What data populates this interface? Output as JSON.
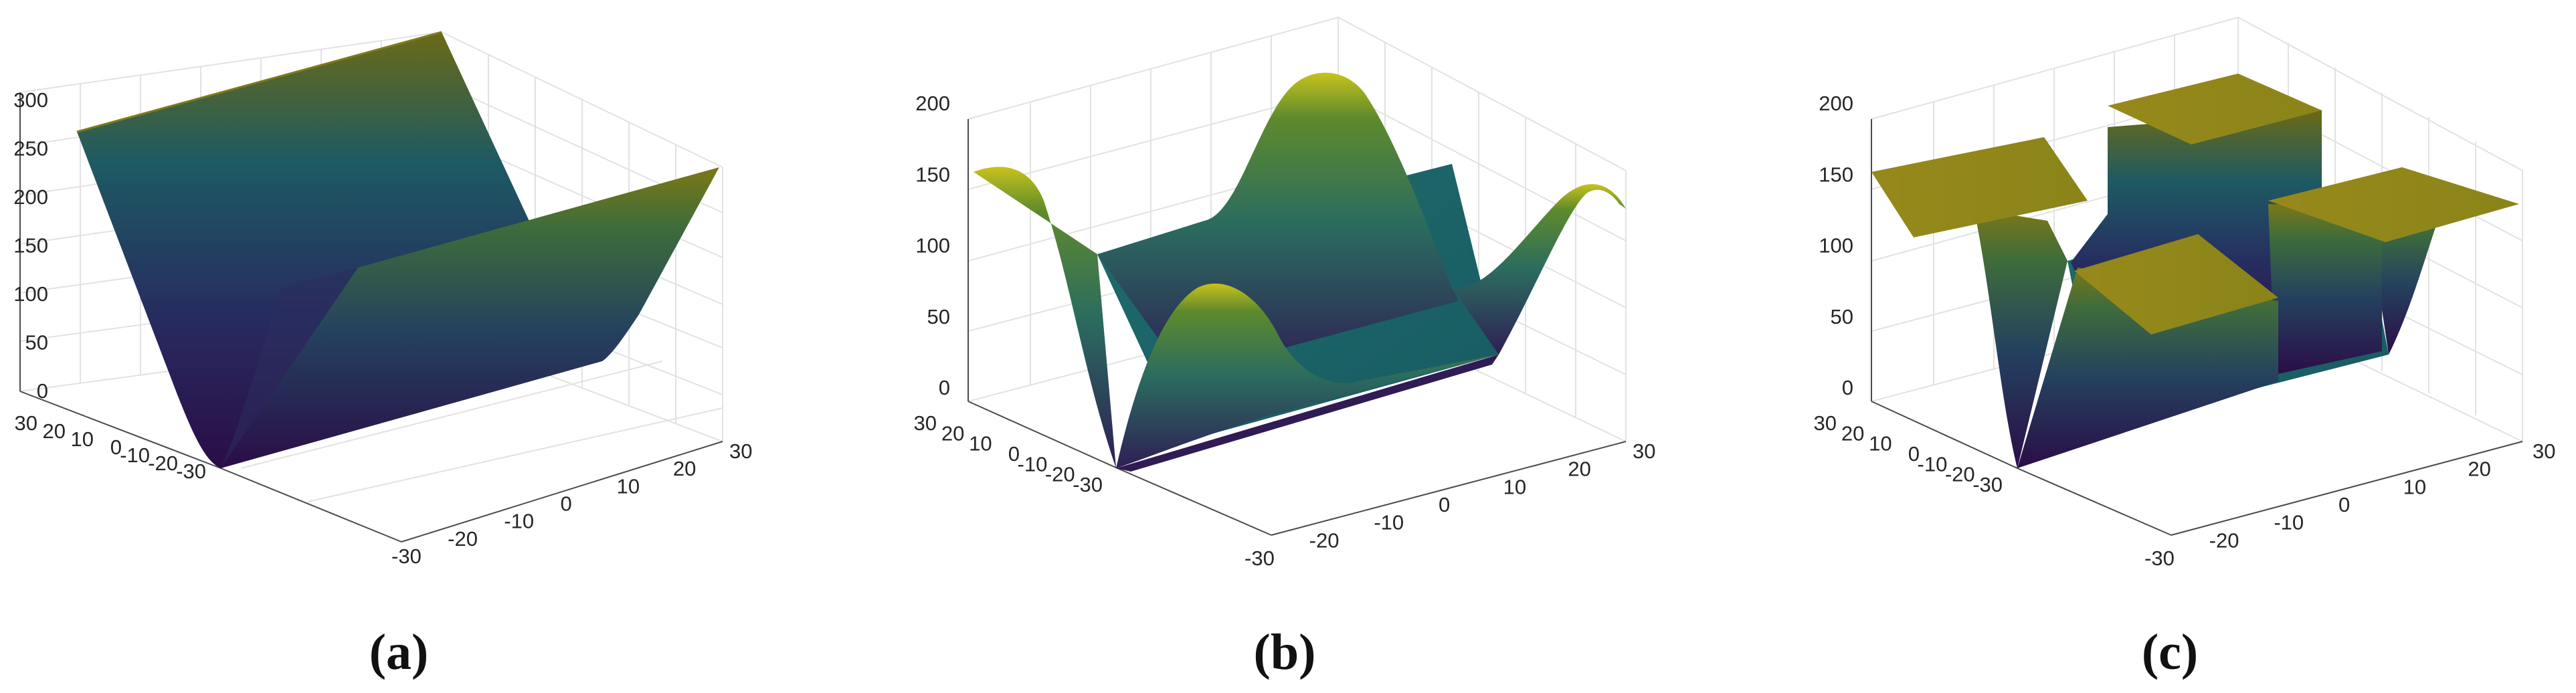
{
  "figure": {
    "panel_labels": [
      "(a)",
      "(b)",
      "(c)"
    ]
  },
  "colors": {
    "colormap": [
      "#440154",
      "#3b528b",
      "#21908d",
      "#5ec962",
      "#fde725"
    ],
    "shading": "viridis-like, height based"
  },
  "chart_data": [
    {
      "type": "surface",
      "panel": "(a)",
      "description": "V-shaped valley: quadratic bottom turning into planar walls",
      "xlim": [
        -30,
        30
      ],
      "ylim": [
        -30,
        30
      ],
      "zlim": [
        0,
        300
      ],
      "x_ticks": [
        -30,
        -20,
        -10,
        0,
        10,
        20,
        30
      ],
      "y_ticks": [
        -30,
        -20,
        -10,
        0,
        10,
        20,
        30
      ],
      "z_ticks": [
        0,
        50,
        100,
        150,
        200,
        250,
        300
      ],
      "x_tick_labels": [
        "-30",
        "-20",
        "-10",
        "0",
        "10",
        "20",
        "30"
      ],
      "y_tick_labels": [
        "-30",
        "-20",
        "-10",
        "0",
        "10",
        "20",
        "30"
      ],
      "z_tick_labels": [
        "0",
        "50",
        "100",
        "150",
        "200",
        "250",
        "300"
      ],
      "surface_profile_vs_y": {
        "y": [
          -30,
          -20,
          -10,
          -5,
          0,
          5,
          10,
          20,
          30
        ],
        "z": [
          300,
          200,
          100,
          50,
          0,
          45,
          100,
          180,
          270
        ]
      },
      "grid": true
    },
    {
      "type": "surface",
      "panel": "(b)",
      "description": "Valley with smooth sinusoidal bumps on both walls",
      "xlim": [
        -30,
        30
      ],
      "ylim": [
        -30,
        30
      ],
      "zlim": [
        0,
        200
      ],
      "x_ticks": [
        -30,
        -20,
        -10,
        0,
        10,
        20,
        30
      ],
      "y_ticks": [
        -30,
        -20,
        -10,
        0,
        10,
        20,
        30
      ],
      "z_ticks": [
        0,
        50,
        100,
        150,
        200
      ],
      "x_tick_labels": [
        "-30",
        "-20",
        "-10",
        "0",
        "10",
        "20",
        "30"
      ],
      "y_tick_labels": [
        "-30",
        "-20",
        "-10",
        "0",
        "10",
        "20",
        "30"
      ],
      "z_tick_labels": [
        "0",
        "50",
        "100",
        "150",
        "200"
      ],
      "peak_height": 200,
      "plateau_height": 50,
      "edge_height": 150,
      "grid": true
    },
    {
      "type": "surface",
      "panel": "(c)",
      "description": "Valley with flat rectangular plateaus on both walls",
      "xlim": [
        -30,
        30
      ],
      "ylim": [
        -30,
        30
      ],
      "zlim": [
        0,
        200
      ],
      "x_ticks": [
        -30,
        -20,
        -10,
        0,
        10,
        20,
        30
      ],
      "y_ticks": [
        -30,
        -20,
        -10,
        0,
        10,
        20,
        30
      ],
      "z_ticks": [
        0,
        50,
        100,
        150,
        200
      ],
      "x_tick_labels": [
        "-30",
        "-20",
        "-10",
        "0",
        "10",
        "20",
        "30"
      ],
      "y_tick_labels": [
        "-30",
        "-20",
        "-10",
        "0",
        "10",
        "20",
        "30"
      ],
      "z_tick_labels": [
        "0",
        "50",
        "100",
        "150",
        "200"
      ],
      "plateau_heights": [
        150,
        200,
        100,
        150
      ],
      "floor_height": 50,
      "grid": true
    }
  ]
}
